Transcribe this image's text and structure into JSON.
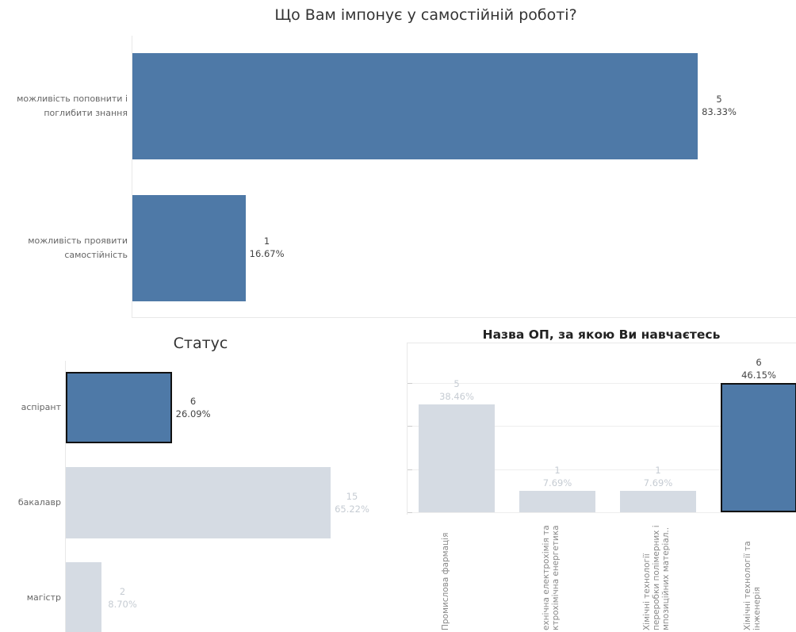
{
  "chart_data": [
    {
      "type": "bar",
      "orientation": "horizontal",
      "title": "Що Вам імпонує у самостійній роботі?",
      "categories": [
        "можливість поповнити і\nпоглибити знання",
        "можливість проявити\nсамостійність"
      ],
      "values": [
        5,
        1
      ],
      "percent_labels": [
        "83.33%",
        "16.67%"
      ],
      "xlim": [
        0,
        5
      ],
      "grid": false,
      "legend": "none",
      "colors": {
        "bar": "#4e79a7"
      }
    },
    {
      "type": "bar",
      "orientation": "horizontal",
      "title": "Статус",
      "categories": [
        "аспірант",
        "бакалавр",
        "магістр"
      ],
      "values": [
        6,
        15,
        2
      ],
      "percent_labels": [
        "26.09%",
        "65.22%",
        "8.70%"
      ],
      "highlighted": [
        true,
        false,
        false
      ],
      "xlim": [
        0,
        15
      ],
      "grid": false,
      "legend": "none",
      "colors": {
        "highlight": "#4e79a7",
        "muted": "#d5dbe3"
      }
    },
    {
      "type": "bar",
      "orientation": "vertical",
      "title": "Назва ОП, за якою Ви навчаєтесь",
      "categories": [
        "Промислова фармація",
        "ехнічна електрохімія та\nктрохімічна енергетика",
        "Хімічні технології\nпереробки полімерних і\nмпозиційних матеріал..",
        "Хімічні технології та\nінженерія"
      ],
      "values": [
        5,
        1,
        1,
        6
      ],
      "percent_labels": [
        "38.46%",
        "7.69%",
        "7.69%",
        "46.15%"
      ],
      "highlighted": [
        false,
        false,
        false,
        true
      ],
      "ylim": [
        0,
        6
      ],
      "grid": true,
      "legend": "none",
      "colors": {
        "highlight": "#4e79a7",
        "muted": "#d5dbe3"
      }
    }
  ]
}
